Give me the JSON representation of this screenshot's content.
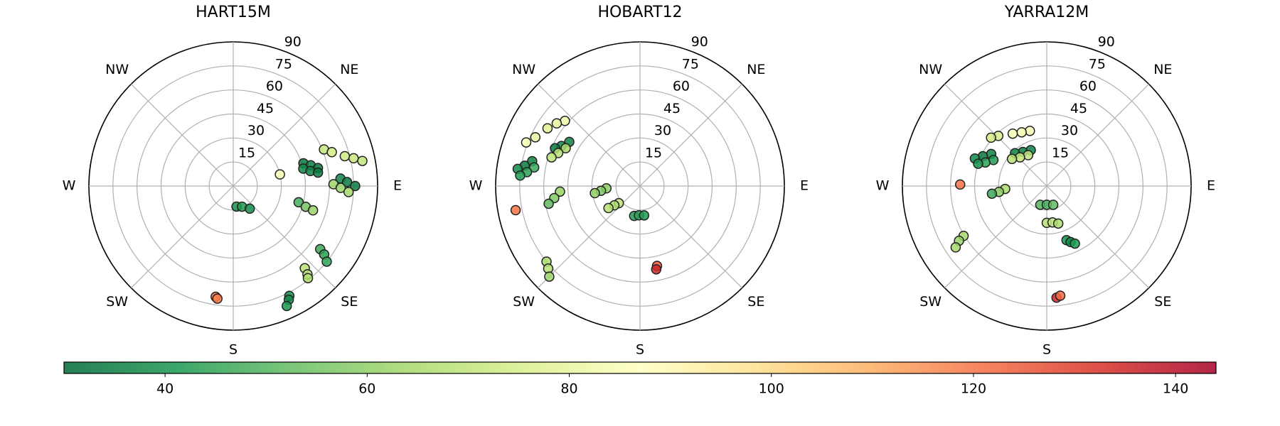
{
  "chart_data": [
    {
      "type": "polar-scatter",
      "title": "HART15M",
      "zero_location": "N",
      "direction": "clockwise",
      "rlim": [
        0,
        90
      ],
      "rticks": [
        15,
        30,
        45,
        60,
        75,
        90
      ],
      "thetaticks": [
        0,
        45,
        90,
        135,
        180,
        225,
        270,
        315
      ],
      "thetaticklabels": [
        null,
        "NE",
        "E",
        "SE",
        "S",
        "SW",
        "W",
        "NW"
      ],
      "theta": [
        76,
        72,
        75,
        78,
        76,
        79,
        81,
        68,
        71,
        75,
        77,
        79,
        86,
        88,
        90,
        89,
        91,
        93,
        104,
        106,
        107,
        126,
        127,
        129,
        139,
        140,
        141,
        153,
        154,
        156,
        171,
        157,
        144,
        189,
        188
      ],
      "r": [
        30,
        46,
        50,
        54,
        45,
        49,
        53.5,
        61,
        65,
        72,
        77,
        82,
        67,
        71,
        76,
        62.5,
        67,
        72,
        42,
        47,
        52,
        67,
        71,
        75,
        68,
        72,
        74,
        77,
        79,
        82,
        13,
        14,
        17.5,
        70,
        71
      ],
      "c": [
        85,
        34,
        35,
        33,
        38,
        36,
        34,
        72,
        74,
        73,
        72,
        70,
        36,
        34,
        35,
        63,
        62,
        64,
        48,
        55,
        62,
        46,
        44,
        45,
        68,
        70,
        66,
        40,
        38,
        41,
        40,
        42,
        38,
        122,
        118
      ]
    },
    {
      "type": "polar-scatter",
      "title": "HOBART12",
      "zero_location": "N",
      "direction": "clockwise",
      "rlim": [
        0,
        90
      ],
      "rticks": [
        15,
        30,
        45,
        60,
        75,
        90
      ],
      "thetaticks": [
        0,
        45,
        90,
        135,
        180,
        225,
        270,
        315
      ],
      "thetaticklabels": [
        null,
        "NE",
        "E",
        "SE",
        "S",
        "SW",
        "W",
        "NW"
      ],
      "theta": [
        311,
        307,
        302,
        295,
        291,
        302,
        297,
        294,
        297,
        292,
        288,
        283,
        280,
        278,
        280,
        277,
        275,
        266,
        262,
        259,
        266,
        263,
        261,
        231,
        233,
        235,
        191,
        182,
        172,
        231,
        228,
        225,
        259,
        168,
        169
      ],
      "r": [
        62,
        65,
        68,
        72,
        76,
        52,
        55,
        58,
        52,
        55,
        58,
        69,
        73,
        77,
        67,
        71,
        75,
        50,
        54,
        58,
        21,
        24.5,
        28.5,
        17,
        20,
        24,
        19,
        18.3,
        18.5,
        75,
        77,
        80,
        79,
        51,
        53
      ],
      "c": [
        82,
        80,
        78,
        80,
        84,
        36,
        38,
        34,
        65,
        68,
        70,
        36,
        34,
        38,
        46,
        44,
        42,
        62,
        58,
        52,
        60,
        58,
        60,
        70,
        66,
        68,
        42,
        44,
        42,
        65,
        68,
        62,
        120,
        125,
        135
      ]
    },
    {
      "type": "polar-scatter",
      "title": "YARRA12M",
      "zero_location": "N",
      "direction": "clockwise",
      "rlim": [
        0,
        90
      ],
      "rticks": [
        15,
        30,
        45,
        60,
        75,
        90
      ],
      "thetaticks": [
        0,
        45,
        90,
        135,
        180,
        225,
        270,
        315
      ],
      "thetaticklabels": [
        null,
        "NE",
        "E",
        "SE",
        "S",
        "SW",
        "W",
        "NW"
      ],
      "theta": [
        343,
        335,
        327,
        316,
        311,
        336,
        325,
        316,
        329,
        317,
        308,
        300,
        295,
        291,
        296,
        291,
        288,
        266,
        263,
        262,
        239,
        238,
        236,
        199,
        180,
        161,
        180,
        171,
        163,
        160,
        157,
        154,
        271,
        175,
        173
      ],
      "r": [
        36,
        37,
        39,
        43.5,
        46,
        24.5,
        26,
        28.5,
        22.5,
        24.5,
        27.5,
        40,
        44,
        48,
        37,
        41,
        45,
        26,
        30,
        34.5,
        60.5,
        64.5,
        68.5,
        12.4,
        11.7,
        12.4,
        23,
        23,
        24.5,
        36,
        38,
        40,
        54,
        70,
        69
      ],
      "c": [
        85,
        83,
        84,
        76,
        74,
        36,
        35,
        37,
        70,
        72,
        68,
        36,
        34,
        38,
        42,
        44,
        40,
        66,
        60,
        46,
        65,
        62,
        64,
        50,
        48,
        52,
        68,
        70,
        66,
        40,
        38,
        42,
        120,
        135,
        122
      ]
    },
    {
      "type": "colorbar",
      "lim": [
        30,
        144
      ],
      "ticks": [
        40,
        60,
        80,
        100,
        120,
        140
      ],
      "colormap": [
        "#006837",
        "#1a9850",
        "#66bd63",
        "#a6d96a",
        "#d9ef8b",
        "#ffffbf",
        "#fee08b",
        "#fdae61",
        "#f46d43",
        "#d73027",
        "#a50026"
      ]
    }
  ]
}
